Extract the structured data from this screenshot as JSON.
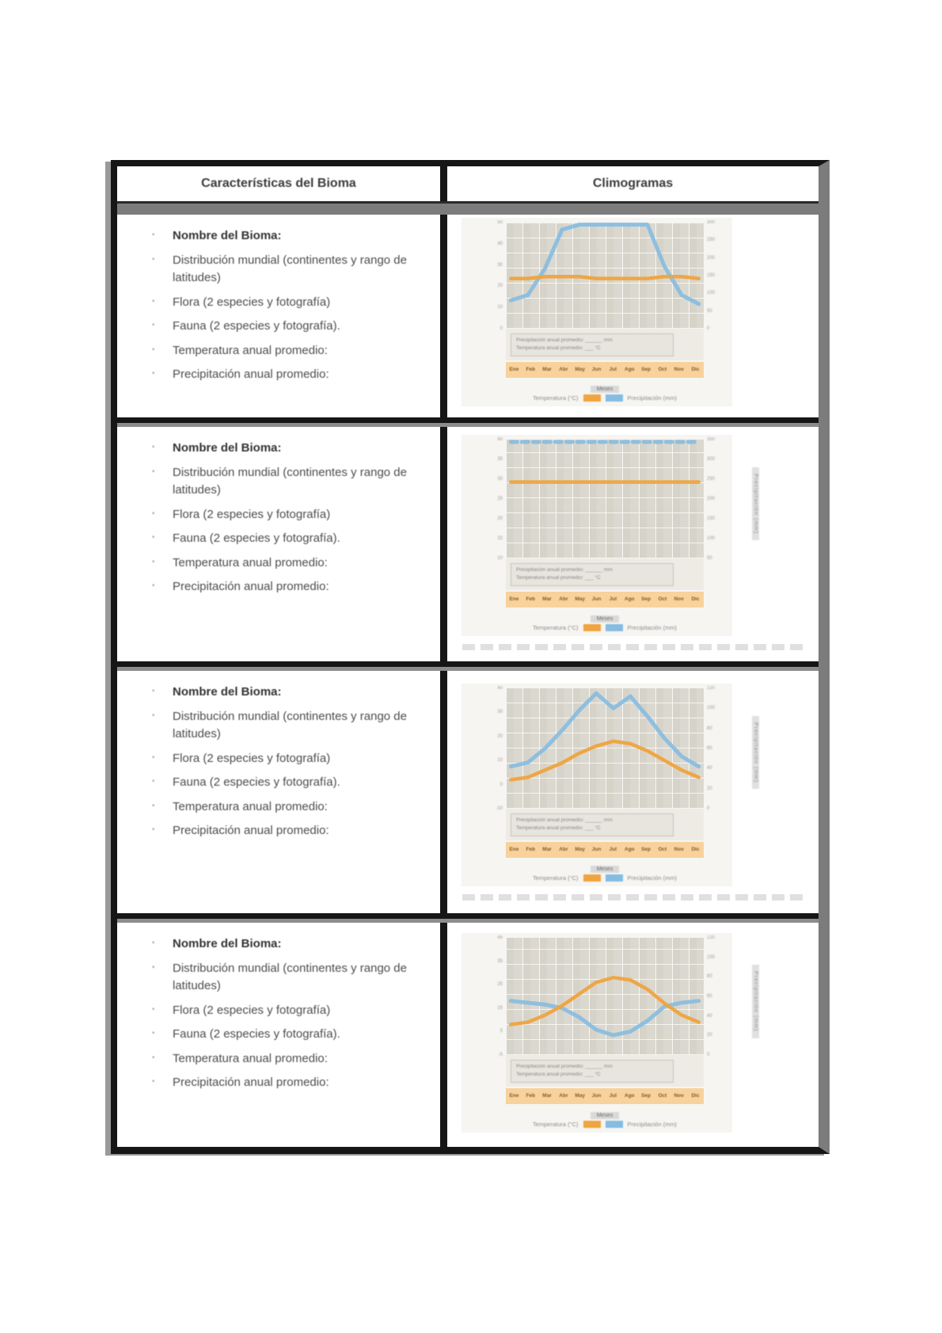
{
  "table": {
    "header_left": "Características del Bioma",
    "header_right": "Climogramas"
  },
  "characteristics": {
    "items": [
      {
        "text": "Nombre del Bioma:",
        "bold": true
      },
      {
        "text": "Distribución mundial (continentes y rango de latitudes)",
        "bold": false
      },
      {
        "text": "Flora (2 especies y fotografía)",
        "bold": false
      },
      {
        "text": "Fauna (2 especies y fotografía).",
        "bold": false
      },
      {
        "text": "Temperatura anual promedio:",
        "bold": false
      },
      {
        "text": "Precipitación anual promedio:",
        "bold": false
      }
    ]
  },
  "chart_common": {
    "months": [
      "Ene",
      "Feb",
      "Mar",
      "Abr",
      "May",
      "Jun",
      "Jul",
      "Ago",
      "Sep",
      "Oct",
      "Nov",
      "Dic"
    ],
    "xlabel": "Meses",
    "legend_temp": "Temperatura (°C)",
    "legend_precip": "Precipitación (mm)",
    "temp_color": "#f0a43f",
    "precip_color": "#85bce2",
    "annotation_lines": [
      "Precipitación anual promedio: ______ mm",
      "Temperatura anual promedio: ___ °C"
    ]
  },
  "chart_data": [
    {
      "name": "climograma-1",
      "type": "line",
      "categories": [
        "Ene",
        "Feb",
        "Mar",
        "Abr",
        "May",
        "Jun",
        "Jul",
        "Ago",
        "Sep",
        "Oct",
        "Nov",
        "Dic"
      ],
      "series": [
        {
          "name": "Temperatura (°C)",
          "values": [
            26,
            26,
            27,
            27,
            27,
            26,
            26,
            26,
            26,
            27,
            27,
            26
          ]
        },
        {
          "name": "Precipitación (mm)",
          "values": [
            80,
            95,
            170,
            280,
            330,
            335,
            335,
            335,
            320,
            175,
            95,
            70
          ]
        }
      ],
      "temp_axis": [
        0,
        55
      ],
      "precip_max": 300,
      "left_ticks": [
        "50",
        "40",
        "30",
        "20",
        "10",
        "0"
      ],
      "right_ticks": [
        "300",
        "250",
        "200",
        "150",
        "100",
        "50",
        "0"
      ],
      "precip_dashed": false,
      "right_axis_label": "",
      "caption": false
    },
    {
      "name": "climograma-2",
      "type": "line",
      "categories": [
        "Ene",
        "Feb",
        "Mar",
        "Abr",
        "May",
        "Jun",
        "Jul",
        "Ago",
        "Sep",
        "Oct",
        "Nov",
        "Dic"
      ],
      "series": [
        {
          "name": "Temperatura (°C)",
          "values": [
            27,
            27,
            27,
            27,
            27,
            27,
            27,
            27,
            27,
            27,
            27,
            27
          ]
        },
        {
          "name": "Precipitación (mm)",
          "values": [
            400,
            400,
            400,
            400,
            400,
            400,
            400,
            400,
            400,
            400,
            400,
            400
          ]
        }
      ],
      "temp_axis": [
        0,
        42
      ],
      "precip_max": 350,
      "left_ticks": [
        "40",
        "35",
        "30",
        "25",
        "20",
        "15",
        "10"
      ],
      "right_ticks": [
        "350",
        "300",
        "250",
        "200",
        "150",
        "100",
        "50"
      ],
      "precip_dashed": true,
      "right_axis_label": "Precipitación (mm)",
      "caption": true
    },
    {
      "name": "climograma-3",
      "type": "line",
      "categories": [
        "Ene",
        "Feb",
        "Mar",
        "Abr",
        "May",
        "Jun",
        "Jul",
        "Ago",
        "Sep",
        "Oct",
        "Nov",
        "Dic"
      ],
      "series": [
        {
          "name": "Temperatura (°C)",
          "values": [
            2,
            3,
            6,
            9,
            13,
            16,
            18,
            17,
            14,
            10,
            6,
            3
          ]
        },
        {
          "name": "Precipitación (mm)",
          "values": [
            42,
            46,
            60,
            78,
            98,
            115,
            100,
            112,
            92,
            70,
            52,
            42
          ]
        }
      ],
      "temp_axis": [
        -10,
        40
      ],
      "precip_max": 120,
      "left_ticks": [
        "40",
        "30",
        "20",
        "10",
        "0",
        "-10"
      ],
      "right_ticks": [
        "120",
        "100",
        "80",
        "60",
        "40",
        "20",
        "0"
      ],
      "precip_dashed": false,
      "right_axis_label": "Precipitación (mm)",
      "caption": true
    },
    {
      "name": "climograma-4",
      "type": "line",
      "categories": [
        "Ene",
        "Feb",
        "Mar",
        "Abr",
        "May",
        "Jun",
        "Jul",
        "Ago",
        "Sep",
        "Oct",
        "Nov",
        "Dic"
      ],
      "series": [
        {
          "name": "Temperatura (°C)",
          "values": [
            8,
            9,
            12,
            16,
            21,
            26,
            28,
            27,
            23,
            17,
            12,
            9
          ]
        },
        {
          "name": "Precipitación (mm)",
          "values": [
            60,
            58,
            56,
            52,
            42,
            28,
            22,
            26,
            38,
            54,
            58,
            60
          ]
        }
      ],
      "temp_axis": [
        -5,
        45
      ],
      "precip_max": 130,
      "left_ticks": [
        "45",
        "35",
        "25",
        "15",
        "5",
        "-5"
      ],
      "right_ticks": [
        "120",
        "100",
        "80",
        "60",
        "40",
        "20",
        "0"
      ],
      "precip_dashed": false,
      "right_axis_label": "Precipitación (mm)",
      "caption": false
    }
  ]
}
